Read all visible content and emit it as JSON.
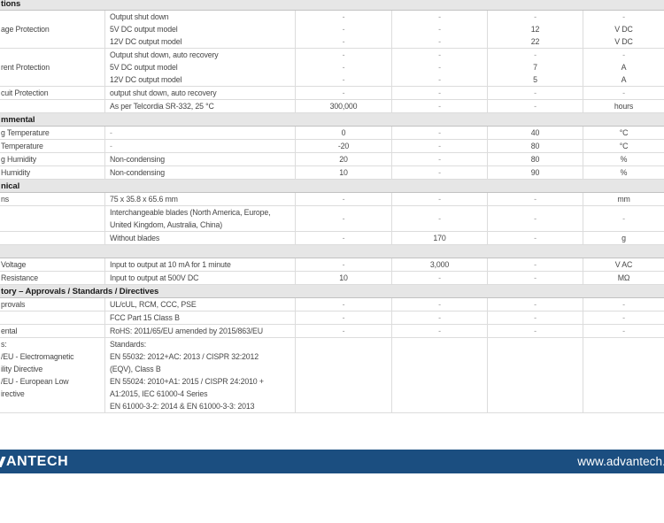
{
  "page": {
    "footer": {
      "logo_text": "ANTECH",
      "url": "www.advantech."
    }
  },
  "colors": {
    "footer_bar_blue": "#1b4e80",
    "section_header_bg": "#e6e6e6",
    "grid_border": "#dcdcdc",
    "body_text": "#474747",
    "dash_text": "#919191"
  },
  "table": {
    "sections": [
      {
        "header": "tions",
        "rows": [
          [
            [
              "age Protection"
            ],
            [
              "Output shut down",
              "5V DC output model",
              "12V DC output model"
            ],
            [
              "-",
              "-",
              "-"
            ],
            [
              "-",
              "-",
              "-"
            ],
            [
              "-",
              "12",
              "22"
            ],
            [
              "-",
              "V DC",
              "V DC"
            ]
          ],
          [
            [
              "rent Protection"
            ],
            [
              "Output shut down, auto recovery",
              "5V DC output model",
              "12V DC output model"
            ],
            [
              "-",
              "-",
              "-"
            ],
            [
              "-",
              "-",
              "-"
            ],
            [
              "-",
              "7",
              "5"
            ],
            [
              "-",
              "A",
              "A"
            ]
          ],
          [
            [
              "cuit Protection"
            ],
            [
              "output shut down, auto recovery"
            ],
            [
              "-"
            ],
            [
              "-"
            ],
            [
              "-"
            ],
            [
              "-"
            ]
          ],
          [
            [
              ""
            ],
            [
              "As per Telcordia SR-332, 25 °C"
            ],
            [
              "300,000"
            ],
            [
              "-"
            ],
            [
              "-"
            ],
            [
              "hours"
            ]
          ]
        ]
      },
      {
        "header": "mmental",
        "rows": [
          [
            [
              "g Temperature"
            ],
            [
              "-"
            ],
            [
              "0"
            ],
            [
              "-"
            ],
            [
              "40"
            ],
            [
              "°C"
            ]
          ],
          [
            [
              "Temperature"
            ],
            [
              "-"
            ],
            [
              "-20"
            ],
            [
              "-"
            ],
            [
              "80"
            ],
            [
              "°C"
            ]
          ],
          [
            [
              "g Humidity"
            ],
            [
              "Non-condensing"
            ],
            [
              "20"
            ],
            [
              "-"
            ],
            [
              "80"
            ],
            [
              "%"
            ]
          ],
          [
            [
              "Humidity"
            ],
            [
              "Non-condensing"
            ],
            [
              "10"
            ],
            [
              "-"
            ],
            [
              "90"
            ],
            [
              "%"
            ]
          ]
        ]
      },
      {
        "header": "nical",
        "rows": [
          [
            [
              "ns"
            ],
            [
              "75 x 35.8 x 65.6 mm"
            ],
            [
              "-"
            ],
            [
              "-"
            ],
            [
              "-"
            ],
            [
              "mm"
            ]
          ],
          [
            [
              ""
            ],
            [
              "Interchangeable blades (North America, Europe,",
              "United Kingdom, Australia, China)"
            ],
            [
              "-"
            ],
            [
              "-"
            ],
            [
              "-"
            ],
            [
              "-"
            ]
          ],
          [
            [
              ""
            ],
            [
              "Without blades"
            ],
            [
              "-"
            ],
            [
              "170"
            ],
            [
              "-"
            ],
            [
              "g"
            ]
          ]
        ]
      },
      {
        "header": "",
        "rows": [
          [
            [
              "Voltage"
            ],
            [
              "Input to output at 10 mA for 1 minute"
            ],
            [
              "-"
            ],
            [
              "3,000"
            ],
            [
              "-"
            ],
            [
              "V AC"
            ]
          ],
          [
            [
              "Resistance"
            ],
            [
              "Input to output at 500V DC"
            ],
            [
              "10"
            ],
            [
              "-"
            ],
            [
              "-"
            ],
            [
              "MΩ"
            ]
          ]
        ]
      },
      {
        "header": "tory – Approvals / Standards / Directives",
        "rows": [
          [
            [
              "provals"
            ],
            [
              "UL/cUL, RCM, CCC, PSE"
            ],
            [
              "-"
            ],
            [
              "-"
            ],
            [
              "-"
            ],
            [
              "-"
            ]
          ],
          [
            [
              ""
            ],
            [
              "FCC Part 15 Class B"
            ],
            [
              "-"
            ],
            [
              "-"
            ],
            [
              "-"
            ],
            [
              "-"
            ]
          ],
          [
            [
              "ental"
            ],
            [
              "RoHS: 2011/65/EU amended by 2015/863/EU"
            ],
            [
              "-"
            ],
            [
              "-"
            ],
            [
              "-"
            ],
            [
              "-"
            ]
          ],
          [
            [
              "s:",
              "/EU - Electromagnetic",
              "ility Directive",
              "/EU - European Low",
              "irective",
              ""
            ],
            [
              "Standards:",
              "EN 55032: 2012+AC: 2013 / CISPR 32:2012",
              "(EQV), Class B",
              "EN 55024: 2010+A1: 2015 / CISPR 24:2010 +",
              "A1:2015, IEC 61000-4 Series",
              "EN 61000-3-2: 2014 & EN 61000-3-3: 2013"
            ],
            [],
            [],
            [],
            []
          ]
        ]
      }
    ]
  }
}
